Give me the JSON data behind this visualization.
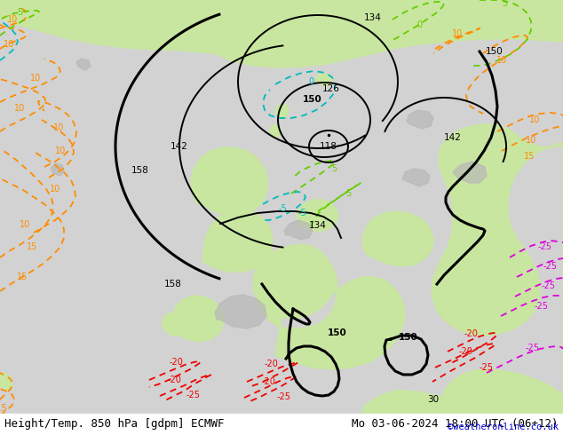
{
  "title_left": "Height/Temp. 850 hPa [gdpm] ECMWF",
  "title_right": "Mo 03-06-2024 18:00 UTC (06+12)",
  "credit": "©weatheronline.co.uk",
  "bg_gray": "#d2d2d2",
  "bg_green": "#c8e6a0",
  "line_color_height": "#000000",
  "line_color_temp_orange": "#ff8c00",
  "line_color_temp_green": "#66cc00",
  "line_color_temp_cyan": "#00bbbb",
  "line_color_temp_red": "#ee0000",
  "line_color_temp_magenta": "#dd00dd",
  "lw_bold": 2.2,
  "lw_med": 1.4,
  "lw_temp": 1.3,
  "font_title": 9,
  "font_label": 7.5,
  "font_credit": 7.5
}
